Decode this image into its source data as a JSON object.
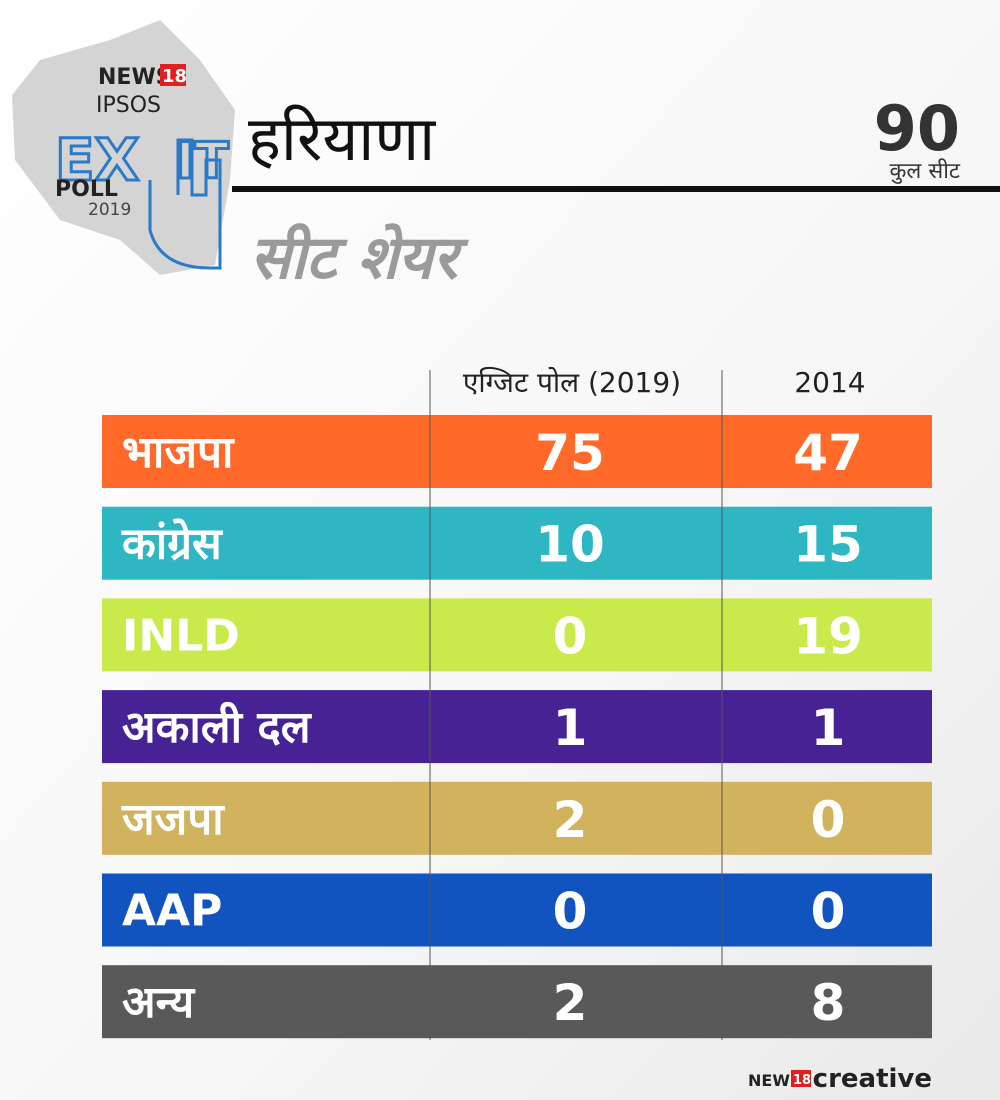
{
  "logo": {
    "brand": "NEWS",
    "brand_number": "18",
    "partner": "IPSOS",
    "exit_left": "EX",
    "exit_right": "IT",
    "poll": "POLL",
    "year": "2019"
  },
  "header": {
    "title": "हरियाणा",
    "subtitle": "सीट शेयर",
    "total": "90",
    "total_label": "कुल सीट"
  },
  "table": {
    "columns": [
      "एग्जिट पोल (2019)",
      "2014"
    ],
    "rows": [
      {
        "party": "भाजपा",
        "color": "#ff6a2b",
        "values": [
          75,
          47
        ]
      },
      {
        "party": "कांग्रेस",
        "color": "#2eb6c3",
        "values": [
          10,
          15
        ]
      },
      {
        "party": "INLD",
        "color": "#c8ea4a",
        "values": [
          0,
          19
        ]
      },
      {
        "party": "अकाली दल",
        "color": "#462294",
        "values": [
          1,
          1
        ]
      },
      {
        "party": "जजपा",
        "color": "#d0b35c",
        "values": [
          2,
          0
        ]
      },
      {
        "party": "AAP",
        "color": "#1153bf",
        "values": [
          0,
          0
        ]
      },
      {
        "party": "अन्य",
        "color": "#595959",
        "values": [
          2,
          8
        ]
      }
    ]
  },
  "footer": {
    "brand": "NEWS",
    "brand_number": "18",
    "label": "creative"
  }
}
